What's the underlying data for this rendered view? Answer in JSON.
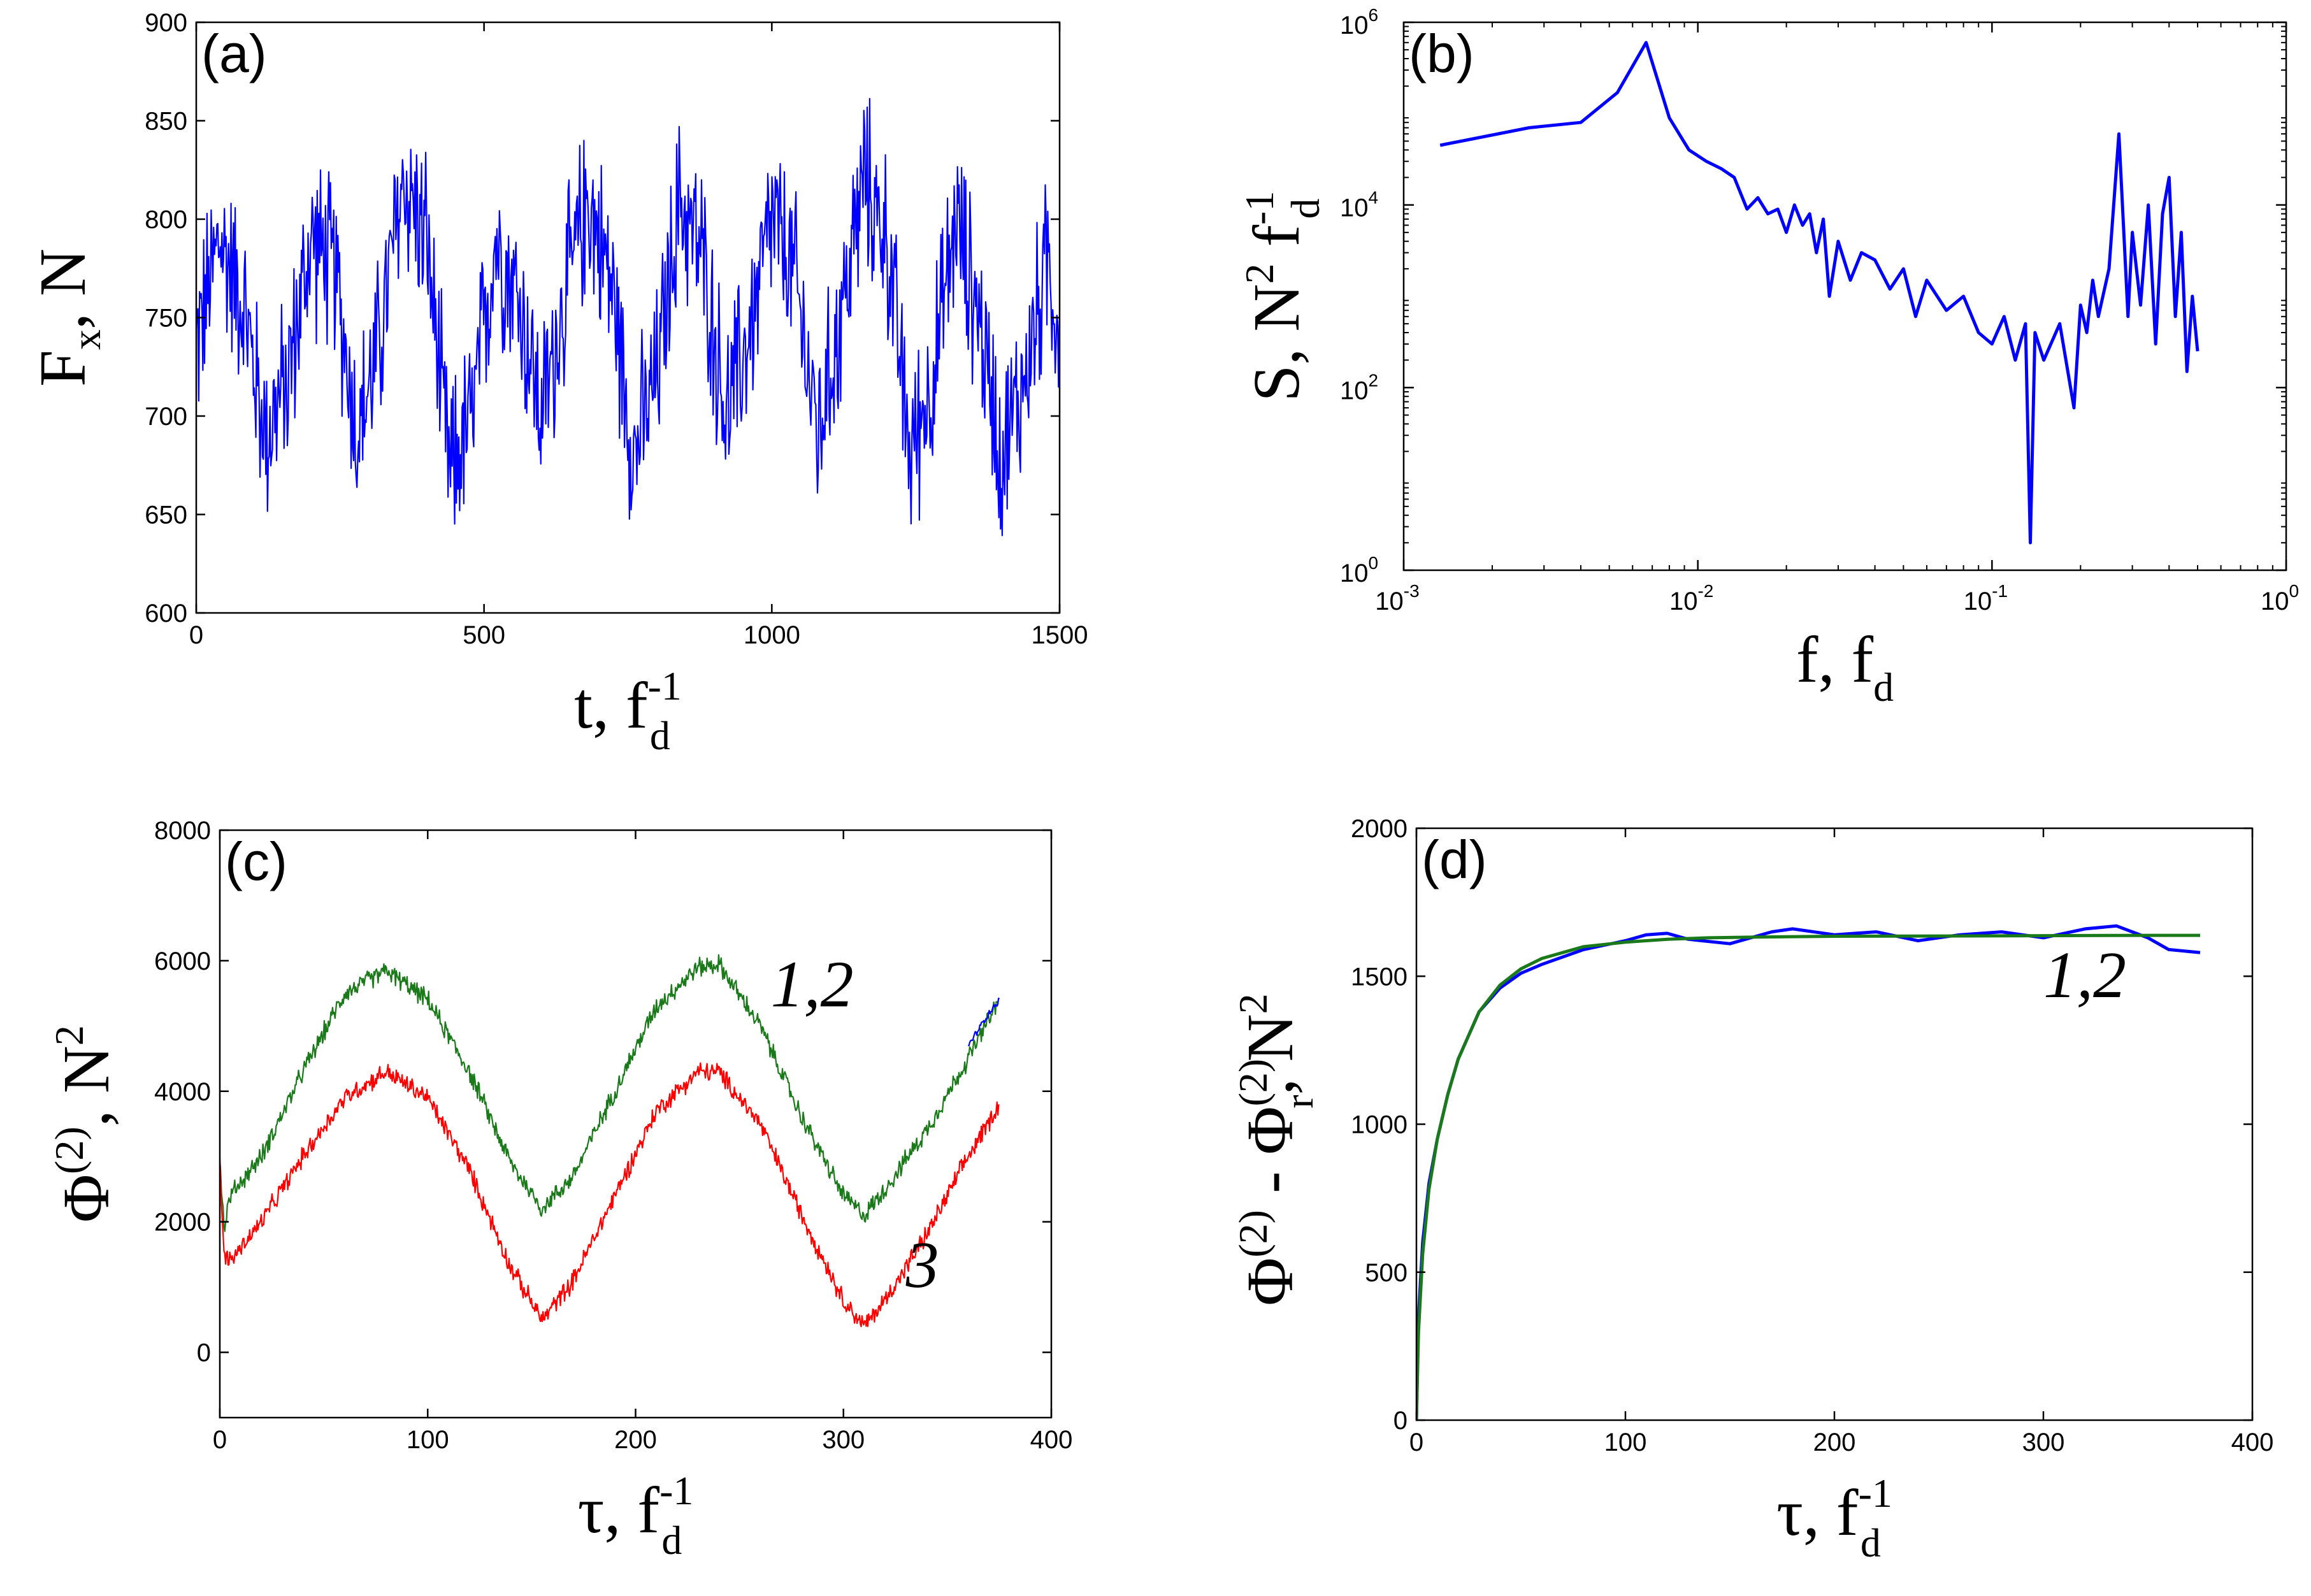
{
  "colors": {
    "blue": "#0000ff",
    "green": "#1a7a1a",
    "red": "#ff0000"
  },
  "chart_data": [
    {
      "id": "a",
      "type": "line",
      "panel_label": "(a)",
      "xlabel": {
        "main": "t, f",
        "sub": "d",
        "sup": "-1"
      },
      "ylabel": {
        "main": "F",
        "sub": "x",
        "rest": ", N"
      },
      "xlim": [
        0,
        1500
      ],
      "ylim": [
        600,
        900
      ],
      "xticks": [
        0,
        500,
        1000,
        1500
      ],
      "xtick_labels": [
        "0",
        "500",
        "1000",
        "1500"
      ],
      "yticks": [
        600,
        650,
        700,
        750,
        800,
        850,
        900
      ],
      "ytick_labels": [
        "600",
        "650",
        "700",
        "750",
        "800",
        "850",
        "900"
      ],
      "series": [
        {
          "color": "blue",
          "x": [
            0,
            40,
            80,
            120,
            160,
            200,
            240,
            280,
            320,
            360,
            400,
            440,
            480,
            520,
            560,
            600,
            640,
            680,
            720,
            760,
            800,
            840,
            880,
            920,
            960,
            1000,
            1040,
            1080,
            1120,
            1160,
            1200,
            1240,
            1280,
            1320,
            1360,
            1400,
            1440,
            1480,
            1500
          ],
          "y": [
            735,
            790,
            760,
            690,
            720,
            790,
            775,
            690,
            740,
            820,
            790,
            670,
            700,
            790,
            760,
            700,
            760,
            810,
            770,
            680,
            720,
            810,
            780,
            700,
            740,
            800,
            770,
            690,
            750,
            820,
            790,
            680,
            720,
            800,
            750,
            680,
            720,
            780,
            740
          ],
          "noise_amplitude": 55
        }
      ]
    },
    {
      "id": "b",
      "type": "line",
      "panel_label": "(b)",
      "xscale": "log",
      "yscale": "log",
      "xlabel": {
        "main": "f, f",
        "sub": "d"
      },
      "ylabel": {
        "main": "S, N",
        "sup1": "2",
        "mid": " f",
        "sup2": "-1",
        "sub": "d"
      },
      "xlim": [
        0.001,
        1
      ],
      "ylim": [
        1,
        1000000
      ],
      "xtick_bases": [
        "10",
        "10",
        "10",
        "10"
      ],
      "xtick_exps": [
        "-3",
        "-2",
        "-1",
        "0"
      ],
      "ytick_bases": [
        "10",
        "10",
        "10",
        "10"
      ],
      "ytick_exps": [
        "0",
        "2",
        "4",
        "6"
      ],
      "series": [
        {
          "color": "blue",
          "x": [
            0.00133,
            0.00267,
            0.004,
            0.00533,
            0.00667,
            0.008,
            0.00933,
            0.0107,
            0.012,
            0.0133,
            0.0147,
            0.016,
            0.0173,
            0.0187,
            0.02,
            0.0213,
            0.0227,
            0.024,
            0.0253,
            0.0267,
            0.028,
            0.03,
            0.033,
            0.036,
            0.04,
            0.045,
            0.05,
            0.055,
            0.06,
            0.07,
            0.08,
            0.09,
            0.1,
            0.11,
            0.12,
            0.13,
            0.135,
            0.14,
            0.15,
            0.17,
            0.19,
            0.2,
            0.21,
            0.22,
            0.23,
            0.25,
            0.27,
            0.29,
            0.3,
            0.32,
            0.34,
            0.36,
            0.38,
            0.4,
            0.42,
            0.44,
            0.46,
            0.48,
            0.5
          ],
          "y": [
            45000,
            70000,
            80000,
            170000,
            600000,
            90000,
            40000,
            30000,
            25000,
            20000,
            9000,
            12000,
            8000,
            9000,
            5000,
            10000,
            6000,
            8000,
            3000,
            7000,
            1000,
            4000,
            1500,
            3000,
            2500,
            1200,
            2000,
            600,
            1500,
            700,
            1000,
            400,
            300,
            600,
            200,
            500,
            2,
            400,
            200,
            500,
            60,
            800,
            400,
            1500,
            600,
            2000,
            60000,
            600,
            5000,
            800,
            10000,
            300,
            8000,
            20000,
            600,
            5000,
            150,
            1000,
            250
          ],
          "noise": false
        }
      ]
    },
    {
      "id": "c",
      "type": "line",
      "panel_label": "(c)",
      "xlabel": {
        "main": "τ, f",
        "sub": "d",
        "sup": "-1"
      },
      "ylabel": {
        "main": "Φ",
        "sup": "(2)",
        "rest": ", N",
        "sup2": "2"
      },
      "xlim": [
        0,
        400
      ],
      "ylim": [
        -1000,
        8000
      ],
      "xticks": [
        0,
        100,
        200,
        300,
        400
      ],
      "xtick_labels": [
        "0",
        "100",
        "200",
        "300",
        "400"
      ],
      "yticks": [
        0,
        2000,
        4000,
        6000,
        8000
      ],
      "ytick_labels": [
        "0",
        "2000",
        "4000",
        "6000",
        "8000"
      ],
      "curve_labels": [
        {
          "text": "1,2",
          "x": 265,
          "y": 5300
        },
        {
          "text": "3",
          "x": 330,
          "y": 1000
        }
      ],
      "series": [
        {
          "color": "green",
          "x": [
            0,
            2,
            5,
            10,
            20,
            40,
            60,
            80,
            100,
            120,
            140,
            155,
            170,
            190,
            210,
            230,
            240,
            260,
            280,
            300,
            310,
            320,
            340,
            360,
            375
          ],
          "y": [
            3000,
            1900,
            2400,
            2600,
            3000,
            4300,
            5500,
            5850,
            5400,
            4300,
            2900,
            2200,
            2700,
            4000,
            5300,
            5900,
            5950,
            5000,
            3600,
            2400,
            2100,
            2500,
            3400,
            4500,
            5400
          ],
          "noise_amplitude": 180
        },
        {
          "color": "blue",
          "x": [
            360,
            365,
            370,
            375
          ],
          "y": [
            4700,
            4950,
            5200,
            5400
          ],
          "noise_amplitude": 60
        },
        {
          "color": "red",
          "x": [
            0,
            2,
            5,
            10,
            20,
            40,
            60,
            80,
            100,
            120,
            140,
            155,
            170,
            190,
            210,
            230,
            240,
            260,
            280,
            300,
            310,
            320,
            340,
            360,
            375
          ],
          "y": [
            2900,
            1500,
            1400,
            1600,
            2000,
            3000,
            3900,
            4300,
            3900,
            2800,
            1300,
            500,
            1100,
            2400,
            3700,
            4300,
            4300,
            3500,
            2100,
            800,
            400,
            800,
            1800,
            3000,
            3800
          ],
          "noise_amplitude": 180
        }
      ]
    },
    {
      "id": "d",
      "type": "line",
      "panel_label": "(d)",
      "xlabel": {
        "main": "τ, f",
        "sub": "d",
        "sup": "-1"
      },
      "ylabel": {
        "main": "Φ",
        "sup": "(2)",
        "mid": " - Φ",
        "sub": "r",
        "sup3": "(2)",
        "rest": ", N",
        "sup2": "2"
      },
      "xlim": [
        0,
        400
      ],
      "ylim": [
        0,
        2000
      ],
      "xticks": [
        0,
        100,
        200,
        300,
        400
      ],
      "xtick_labels": [
        "0",
        "100",
        "200",
        "300",
        "400"
      ],
      "yticks": [
        0,
        500,
        1000,
        1500,
        2000
      ],
      "ytick_labels": [
        "0",
        "500",
        "1000",
        "1500",
        "2000"
      ],
      "curve_labels": [
        {
          "text": "1,2",
          "x": 300,
          "y": 1430
        }
      ],
      "series": [
        {
          "color": "blue",
          "x": [
            0,
            1,
            3,
            6,
            10,
            15,
            20,
            30,
            40,
            50,
            60,
            80,
            100,
            110,
            120,
            130,
            150,
            170,
            180,
            200,
            220,
            240,
            260,
            280,
            300,
            320,
            335,
            350,
            360,
            375
          ],
          "y": [
            0,
            350,
            600,
            800,
            950,
            1100,
            1220,
            1380,
            1460,
            1510,
            1540,
            1590,
            1620,
            1640,
            1645,
            1625,
            1610,
            1650,
            1660,
            1640,
            1650,
            1620,
            1640,
            1650,
            1630,
            1660,
            1670,
            1630,
            1590,
            1580
          ],
          "noise": false
        },
        {
          "color": "green",
          "x": [
            0,
            1,
            3,
            6,
            10,
            15,
            20,
            30,
            40,
            50,
            60,
            80,
            100,
            120,
            140,
            160,
            200,
            250,
            300,
            350,
            375
          ],
          "y": [
            0,
            300,
            560,
            780,
            950,
            1100,
            1220,
            1380,
            1470,
            1525,
            1560,
            1600,
            1615,
            1625,
            1630,
            1632,
            1635,
            1636,
            1637,
            1638,
            1638
          ],
          "noise": false
        }
      ]
    }
  ]
}
